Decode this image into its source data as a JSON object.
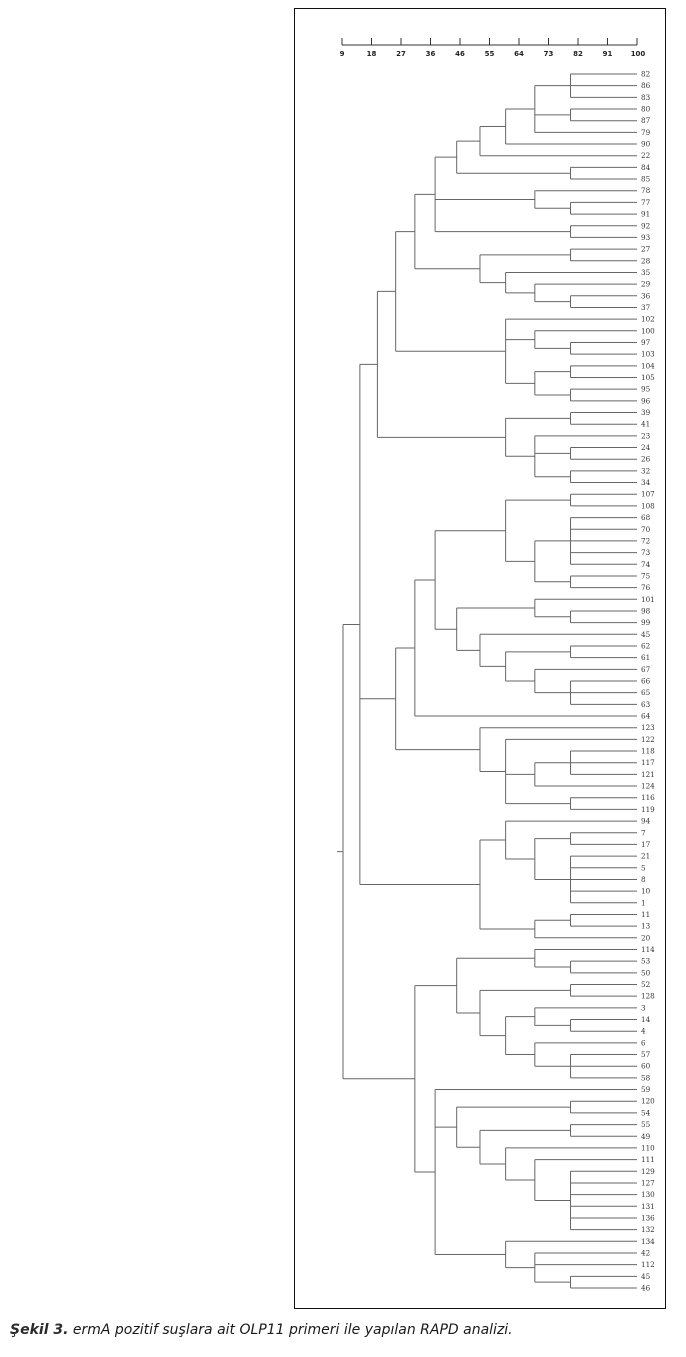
{
  "scale_ticks": [
    "9",
    "18",
    "27",
    "36",
    "46",
    "55",
    "64",
    "73",
    "82",
    "91",
    "100"
  ],
  "leaves": [
    "82",
    "86",
    "83",
    "80",
    "87",
    "79",
    "90",
    "22",
    "84",
    "85",
    "78",
    "77",
    "91",
    "92",
    "93",
    "27",
    "28",
    "35",
    "29",
    "36",
    "37",
    "102",
    "100",
    "97",
    "103",
    "104",
    "105",
    "95",
    "96",
    "39",
    "41",
    "23",
    "24",
    "26",
    "32",
    "34",
    "107",
    "108",
    "68",
    "70",
    "72",
    "73",
    "74",
    "75",
    "76",
    "101",
    "98",
    "99",
    "45",
    "62",
    "61",
    "67",
    "66",
    "65",
    "63",
    "64",
    "123",
    "122",
    "118",
    "117",
    "121",
    "124",
    "116",
    "119",
    "94",
    "7",
    "17",
    "21",
    "5",
    "8",
    "10",
    "1",
    "11",
    "13",
    "20",
    "114",
    "53",
    "50",
    "52",
    "128",
    "3",
    "14",
    "4",
    "6",
    "57",
    "60",
    "58",
    "59",
    "120",
    "54",
    "55",
    "49",
    "110",
    "111",
    "129",
    "127",
    "130",
    "131",
    "136",
    "132",
    "134",
    "42",
    "112",
    "45",
    "46"
  ],
  "caption": {
    "prefix": "Şekil 3.",
    "text": " ermA pozitif suşlara ait OLP11 primeri ile yapılan RAPD analizi."
  },
  "tree": [
    [
      [
        [
          [
            [
              [
                [
                  [
                    [
                      [
                        0,
                        1,
                        2
                      ],
                      [
                        3,
                        4
                      ],
                      5
                    ],
                    6
                  ],
                  7
                ],
                [
                  8,
                  9
                ]
              ],
              [
                10,
                [
                  11,
                  12
                ]
              ],
              [
                13,
                14
              ]
            ],
            [
              [
                15,
                16
              ],
              [
                17,
                [
                  18,
                  [
                    19,
                    20
                  ]
                ]
              ]
            ]
          ],
          [
            21,
            [
              22,
              [
                23,
                24
              ]
            ],
            [
              [
                25,
                26
              ],
              [
                27,
                28
              ]
            ]
          ]
        ],
        [
          [
            29,
            30
          ],
          [
            31,
            [
              32,
              33
            ],
            [
              34,
              35
            ]
          ]
        ]
      ],
      [
        [
          [
            [
              [
                36,
                37
              ],
              [
                [
                  38,
                  39,
                  40,
                  41,
                  42
                ],
                [
                  43,
                  44
                ]
              ]
            ],
            [
              [
                45,
                [
                  46,
                  47
                ]
              ],
              [
                48,
                [
                  [
                    49,
                    50
                  ],
                  [
                    51,
                    [
                      52,
                      53,
                      54
                    ]
                  ]
                ]
              ]
            ]
          ],
          55
        ],
        [
          56,
          [
            57,
            [
              [
                58,
                59,
                60
              ],
              61
            ],
            [
              62,
              63
            ]
          ]
        ]
      ],
      [
        [
          64,
          [
            [
              65,
              66
            ],
            [
              67,
              68,
              69,
              70,
              71
            ]
          ]
        ],
        [
          [
            72,
            73
          ],
          74
        ]
      ]
    ],
    [
      [
        [
          75,
          [
            76,
            77
          ]
        ],
        [
          [
            78,
            79
          ],
          [
            [
              80,
              [
                81,
                82
              ]
            ],
            [
              83,
              [
                84,
                85,
                86
              ]
            ]
          ]
        ]
      ],
      [
        87,
        [
          [
            88,
            89
          ],
          [
            [
              90,
              91
            ],
            [
              92,
              [
                93,
                [
                  94,
                  95,
                  96,
                  97,
                  98,
                  99
                ]
              ]
            ]
          ]
        ],
        [
          100,
          [
            101,
            102,
            [
              103,
              104
            ]
          ]
        ]
      ]
    ]
  ]
}
